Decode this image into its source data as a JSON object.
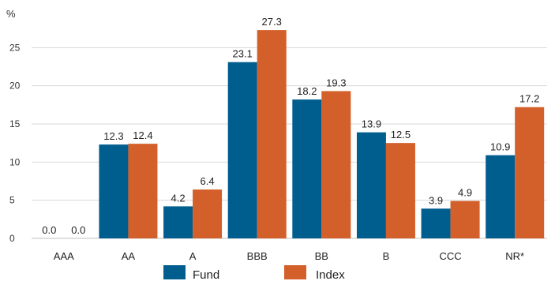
{
  "chart_data": {
    "type": "bar",
    "ylabel": "%",
    "categories": [
      "AAA",
      "AA",
      "A",
      "BBB",
      "BB",
      "B",
      "CCC",
      "NR*"
    ],
    "series": [
      {
        "name": "Fund",
        "color": "#005E8F",
        "values": [
          0.0,
          12.3,
          4.2,
          23.1,
          18.2,
          13.9,
          3.9,
          10.9
        ]
      },
      {
        "name": "Index",
        "color": "#D35F2A",
        "values": [
          0.0,
          12.4,
          6.4,
          27.3,
          19.3,
          12.5,
          4.9,
          17.2
        ]
      }
    ],
    "yticks": [
      0,
      5,
      10,
      15,
      20,
      25
    ],
    "ylim": [
      0,
      30
    ],
    "grid": true,
    "legend_position": "bottom-center"
  }
}
